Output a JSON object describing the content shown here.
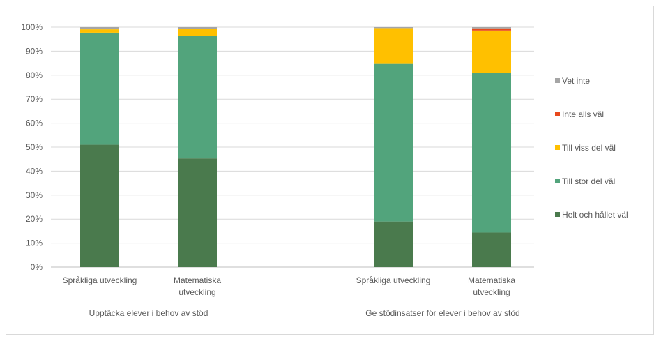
{
  "chart_data": {
    "type": "bar",
    "stacked": true,
    "title": "",
    "xlabel": "",
    "ylabel": "",
    "ylim": [
      0,
      100
    ],
    "y_ticks": [
      "0%",
      "10%",
      "20%",
      "30%",
      "40%",
      "50%",
      "60%",
      "70%",
      "80%",
      "90%",
      "100%"
    ],
    "grid": true,
    "legend_position": "right",
    "groups": [
      {
        "label": "Upptäcka elever i behov av stöd",
        "categories": [
          {
            "label_lines": [
              "Språkliga utveckling"
            ]
          },
          {
            "label_lines": [
              "Matematiska",
              "utveckling"
            ]
          }
        ]
      },
      {
        "label": "Ge stödinsatser för elever i behov av stöd",
        "categories": [
          {
            "label_lines": [
              "Språkliga utveckling"
            ]
          },
          {
            "label_lines": [
              "Matematiska",
              "utveckling"
            ]
          }
        ]
      }
    ],
    "series": [
      {
        "name": "Helt och hållet väl",
        "color": "#4a7a4d",
        "values": [
          51,
          45.3,
          19,
          14.4
        ]
      },
      {
        "name": "Till stor del väl",
        "color": "#52a47c",
        "values": [
          46.7,
          51,
          65.7,
          66.6
        ]
      },
      {
        "name": "Till viss del väl",
        "color": "#ffc000",
        "values": [
          1.4,
          2.9,
          14.9,
          17.6
        ]
      },
      {
        "name": "Inte alls väl",
        "color": "#e8491d",
        "values": [
          0,
          0,
          0,
          0.9
        ]
      },
      {
        "name": "Vet inte",
        "color": "#a5a5a5",
        "values": [
          0.9,
          0.8,
          0.4,
          0.5
        ]
      }
    ]
  }
}
